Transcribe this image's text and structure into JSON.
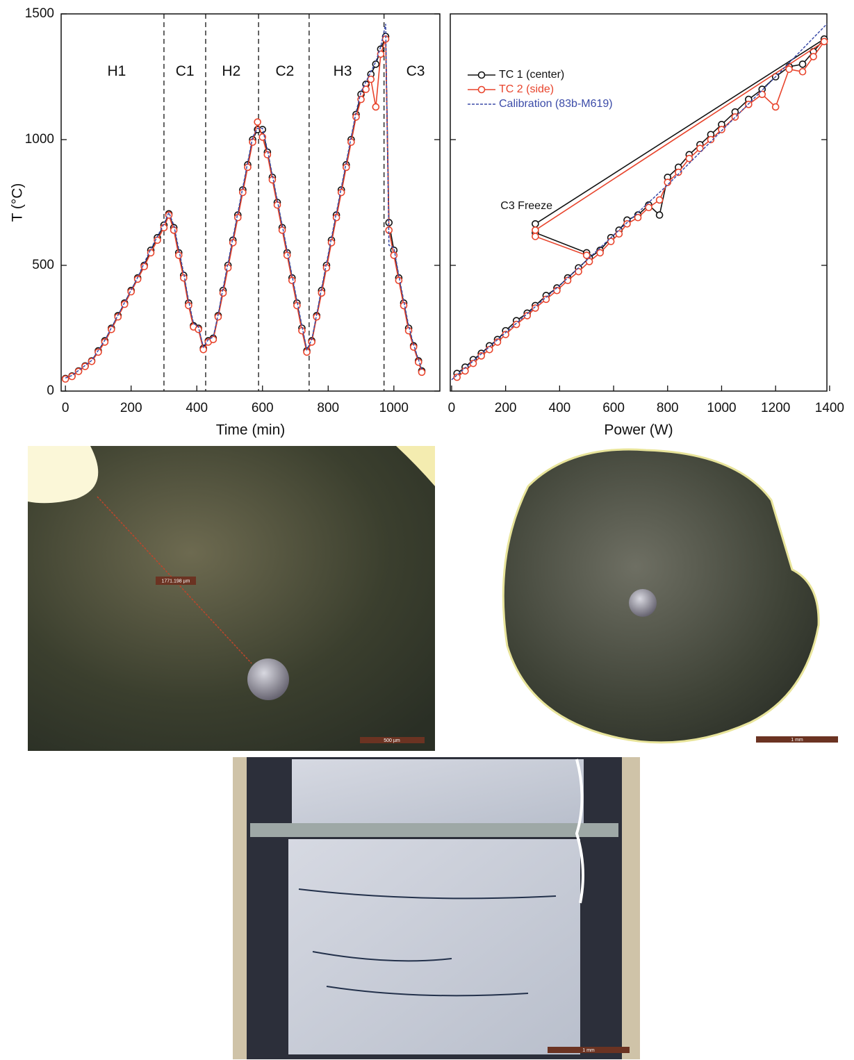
{
  "chart_data": [
    {
      "type": "line",
      "xlabel": "Time (min)",
      "ylabel": "T (°C)",
      "xlim": [
        -13,
        1140
      ],
      "ylim": [
        0,
        1500
      ],
      "xticks": [
        0,
        200,
        400,
        600,
        800,
        1000
      ],
      "yticks": [
        0,
        500,
        1000,
        1500
      ],
      "vlines": [
        300,
        427,
        588,
        742,
        970
      ],
      "annotations": [
        {
          "text": "H1",
          "x": 156,
          "y": 1270
        },
        {
          "text": "C1",
          "x": 364,
          "y": 1270
        },
        {
          "text": "H2",
          "x": 505,
          "y": 1270
        },
        {
          "text": "C2",
          "x": 668,
          "y": 1270
        },
        {
          "text": "H3",
          "x": 844,
          "y": 1270
        },
        {
          "text": "C3",
          "x": 1066,
          "y": 1270
        }
      ],
      "x": [
        0,
        20,
        40,
        60,
        80,
        100,
        120,
        140,
        160,
        180,
        200,
        220,
        240,
        260,
        280,
        300,
        315,
        330,
        345,
        360,
        375,
        390,
        405,
        420,
        435,
        450,
        465,
        480,
        495,
        510,
        525,
        540,
        555,
        570,
        585,
        600,
        615,
        630,
        645,
        660,
        675,
        690,
        705,
        720,
        735,
        750,
        765,
        780,
        795,
        810,
        825,
        840,
        855,
        870,
        885,
        900,
        915,
        930,
        945,
        960,
        975,
        985,
        1000,
        1015,
        1030,
        1045,
        1060,
        1075,
        1085
      ],
      "series": [
        {
          "color": "#111111",
          "marker": true,
          "dashed": false,
          "values": [
            50,
            60,
            80,
            100,
            120,
            160,
            200,
            250,
            300,
            350,
            400,
            450,
            500,
            560,
            610,
            660,
            705,
            650,
            550,
            460,
            350,
            260,
            250,
            170,
            200,
            210,
            300,
            400,
            500,
            600,
            700,
            800,
            900,
            1000,
            1040,
            1040,
            950,
            850,
            750,
            650,
            550,
            450,
            350,
            250,
            160,
            200,
            300,
            400,
            500,
            600,
            700,
            800,
            900,
            1000,
            1100,
            1180,
            1220,
            1260,
            1300,
            1360,
            1410,
            670,
            560,
            450,
            350,
            250,
            180,
            120,
            80
          ]
        },
        {
          "color": "#e8442c",
          "marker": true,
          "dashed": false,
          "values": [
            48,
            58,
            78,
            98,
            118,
            155,
            195,
            245,
            295,
            345,
            395,
            445,
            495,
            550,
            600,
            650,
            700,
            640,
            540,
            450,
            340,
            255,
            245,
            165,
            195,
            205,
            295,
            390,
            490,
            590,
            690,
            790,
            890,
            990,
            1070,
            1010,
            940,
            840,
            740,
            640,
            540,
            440,
            340,
            240,
            155,
            195,
            295,
            390,
            490,
            590,
            690,
            790,
            890,
            990,
            1090,
            1160,
            1200,
            1240,
            1130,
            1340,
            1400,
            640,
            540,
            440,
            340,
            240,
            175,
            115,
            75
          ]
        },
        {
          "color": "#3b4ba8",
          "marker": false,
          "dashed": true,
          "values": [
            52,
            62,
            82,
            102,
            122,
            162,
            202,
            252,
            302,
            352,
            402,
            452,
            510,
            565,
            615,
            665,
            710,
            660,
            565,
            470,
            360,
            270,
            255,
            175,
            205,
            215,
            305,
            410,
            510,
            610,
            710,
            810,
            910,
            1010,
            1045,
            1045,
            960,
            860,
            760,
            660,
            560,
            460,
            360,
            260,
            165,
            205,
            305,
            410,
            510,
            610,
            710,
            810,
            910,
            1010,
            1110,
            1190,
            1230,
            1270,
            1310,
            1370,
            1460,
            580,
            570,
            460,
            360,
            260,
            185,
            125,
            85
          ]
        }
      ]
    },
    {
      "type": "xy",
      "xlabel": "Power (W)",
      "xlim": [
        -5,
        1390
      ],
      "ylim": [
        0,
        1500
      ],
      "xticks": [
        0,
        200,
        400,
        600,
        800,
        1000,
        1200,
        1400
      ],
      "yticks": [
        500,
        1000
      ],
      "legend": "upper left",
      "annotations": [
        {
          "text": "C3 Freeze",
          "x": 181,
          "y": 735
        }
      ],
      "series": [
        {
          "name": "TC 1 (center)",
          "color": "#111111",
          "marker": true,
          "dashed": false,
          "x": [
            20,
            50,
            80,
            110,
            140,
            170,
            200,
            240,
            280,
            310,
            350,
            390,
            430,
            470,
            510,
            550,
            590,
            620,
            650,
            690,
            730,
            770,
            800,
            840,
            880,
            920,
            960,
            1000,
            1050,
            1100,
            1150,
            1200,
            1250,
            1300,
            1340,
            1380,
            310,
            310,
            500
          ],
          "values": [
            70,
            95,
            125,
            150,
            180,
            205,
            240,
            280,
            310,
            340,
            380,
            410,
            450,
            490,
            530,
            560,
            610,
            640,
            680,
            700,
            740,
            700,
            850,
            890,
            940,
            980,
            1020,
            1060,
            1110,
            1160,
            1200,
            1250,
            1290,
            1300,
            1350,
            1400,
            665,
            630,
            550
          ]
        },
        {
          "name": "TC 2 (side)",
          "color": "#e8442c",
          "marker": true,
          "dashed": false,
          "x": [
            20,
            50,
            80,
            110,
            140,
            170,
            200,
            240,
            280,
            310,
            350,
            390,
            430,
            470,
            510,
            550,
            590,
            620,
            650,
            690,
            730,
            770,
            800,
            840,
            880,
            920,
            960,
            1000,
            1050,
            1100,
            1150,
            1200,
            1250,
            1300,
            1340,
            1380,
            310,
            310,
            500
          ],
          "values": [
            55,
            80,
            110,
            140,
            165,
            195,
            225,
            265,
            300,
            330,
            365,
            400,
            440,
            475,
            515,
            550,
            595,
            625,
            665,
            690,
            730,
            760,
            830,
            870,
            925,
            965,
            1000,
            1040,
            1090,
            1140,
            1180,
            1130,
            1280,
            1270,
            1330,
            1390,
            640,
            615,
            540
          ]
        },
        {
          "name": "Calibration (83b-M619)",
          "color": "#3b4ba8",
          "marker": false,
          "dashed": true,
          "x": [
            0,
            400,
            800,
            1200,
            1390
          ],
          "values": [
            45,
            420,
            820,
            1250,
            1460
          ]
        }
      ]
    }
  ],
  "images": [
    {
      "measure": "1771.198 µm",
      "scale_bar": "500 µm"
    },
    {
      "scale_bar": "1 mm"
    },
    {
      "scale_bar": "1 mm"
    }
  ]
}
